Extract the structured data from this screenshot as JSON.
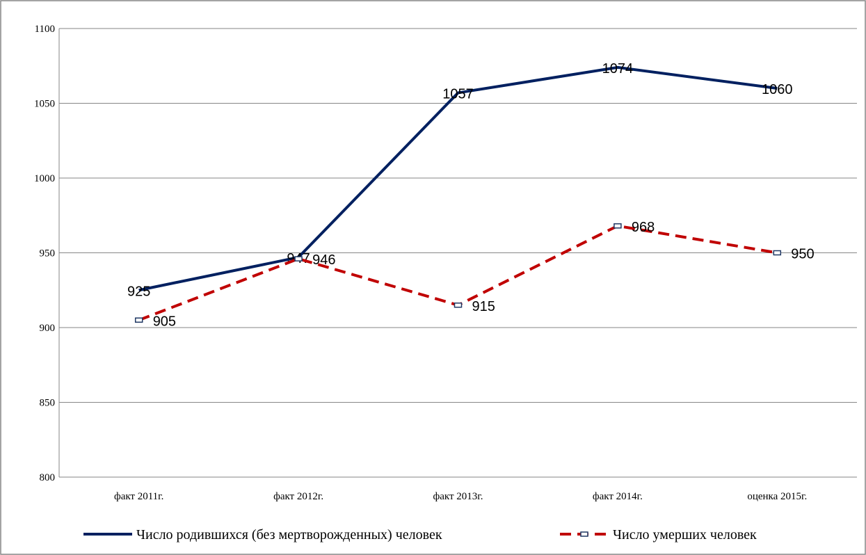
{
  "chart_data": {
    "type": "line",
    "categories": [
      "факт 2011г.",
      "факт 2012г.",
      "факт 2013г.",
      "факт 2014г.",
      "оценка 2015г."
    ],
    "series": [
      {
        "name": "Число родившихся (без мертворожденных) человек",
        "color": "#002060",
        "values": [
          925,
          947,
          1057,
          1074,
          1060
        ]
      },
      {
        "name": "Число умерших  человек",
        "color": "#c00000",
        "values": [
          905,
          946,
          915,
          968,
          950
        ]
      }
    ],
    "ylim": [
      800,
      1100
    ],
    "yticks": [
      800,
      850,
      900,
      950,
      1000,
      1050,
      1100
    ],
    "grid": true,
    "legend": "bottom"
  }
}
